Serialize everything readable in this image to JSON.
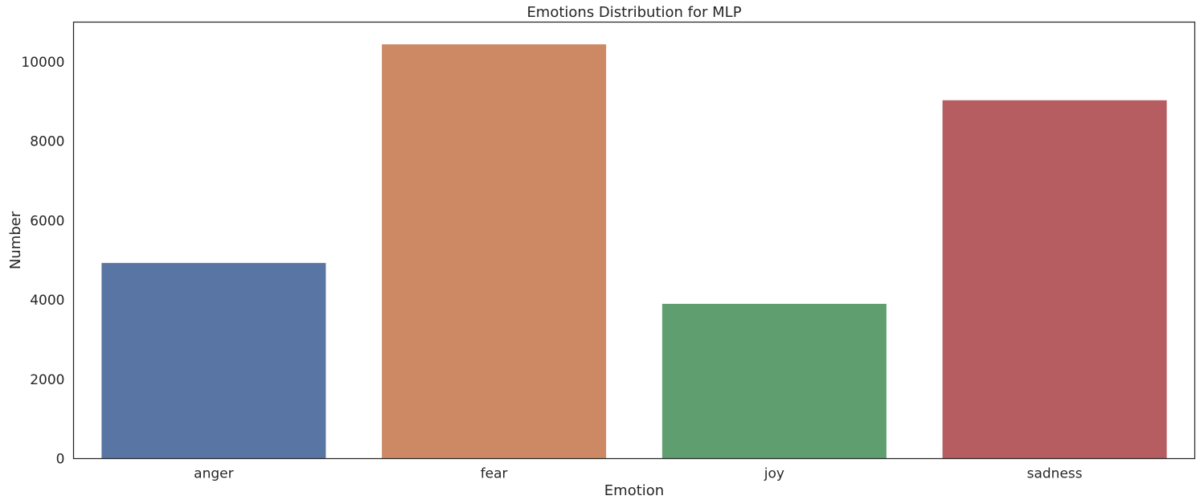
{
  "chart_data": {
    "type": "bar",
    "title": "Emotions Distribution for MLP",
    "xlabel": "Emotion",
    "ylabel": "Number",
    "categories": [
      "anger",
      "fear",
      "joy",
      "sadness"
    ],
    "values": [
      4930,
      10440,
      3900,
      9030
    ],
    "colors": [
      "#5975a4",
      "#cc8963",
      "#5f9e6e",
      "#b55d60"
    ],
    "ylim": [
      0,
      11000
    ],
    "yticks": [
      0,
      2000,
      4000,
      6000,
      8000,
      10000
    ],
    "grid": false,
    "legend": "none"
  }
}
